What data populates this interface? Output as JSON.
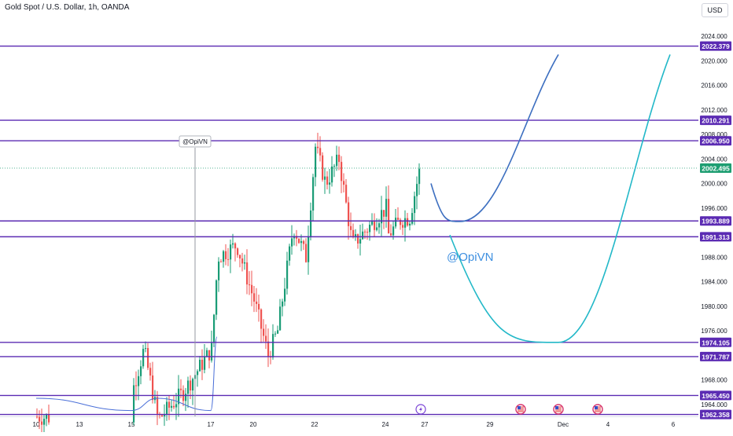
{
  "header": {
    "symbol_title": "Gold Spot / U.S. Dollar, 1h, OANDA",
    "currency": "USD"
  },
  "watermark": "@OpiVN",
  "marker_label": "@OpiVN",
  "colors": {
    "level_line": "#5b2bb3",
    "level_label_bg": "#5b2bb3",
    "up_candle": "#1a9c76",
    "down_candle": "#ef5350",
    "ma_line": "#4a6fd8",
    "projection_blue": "#3d6fc0",
    "projection_cyan": "#22b8c8",
    "last_price_bg": "#1e9e72",
    "watermark": "#3d8fe0"
  },
  "chart_data": {
    "type": "candlestick",
    "title": "Gold Spot / U.S. Dollar, 1h, OANDA",
    "currency": "USD",
    "x_tick_labels": [
      "10",
      "13",
      "15",
      "17",
      "20",
      "22",
      "24",
      "27",
      "29",
      "Dec",
      "4",
      "6"
    ],
    "y_ticks": [
      2024.0,
      2020.0,
      2016.0,
      2012.0,
      2008.0,
      2004.0,
      2000.0,
      1996.0,
      1988.0,
      1984.0,
      1980.0,
      1976.0,
      1968.0,
      1964.0
    ],
    "ylim": [
      1961.3,
      2024.8
    ],
    "last_price": 2002.495,
    "horizontal_levels": [
      2022.379,
      2010.291,
      2006.95,
      1993.889,
      1991.313,
      1974.105,
      1971.787,
      1965.45,
      1962.358
    ],
    "price_path_anchors": [
      [
        "10",
        1962.0
      ],
      [
        "13",
        1961.5
      ],
      [
        "15",
        1966.0
      ],
      [
        "15.5",
        1973.0
      ],
      [
        "16",
        1961.5
      ],
      [
        "16.5",
        1966.0
      ],
      [
        "17",
        1973.0
      ],
      [
        "17.5",
        1988.0
      ],
      [
        "19",
        1990.0
      ],
      [
        "20",
        1981.0
      ],
      [
        "20.8",
        1972.0
      ],
      [
        "21",
        1976.0
      ],
      [
        "21.5",
        1993.0
      ],
      [
        "21.8",
        1988.0
      ],
      [
        "22",
        2006.0
      ],
      [
        "22.5",
        2000.0
      ],
      [
        "23",
        2004.0
      ],
      [
        "23.5",
        1990.0
      ],
      [
        "24",
        1996.0
      ],
      [
        "24.5",
        1991.5
      ],
      [
        "25",
        1994.0
      ],
      [
        "25.5",
        1994.5
      ],
      [
        "26",
        2002.5
      ]
    ],
    "ma_path_anchors": [
      [
        "10",
        1965.0
      ],
      [
        "15",
        1963.0
      ],
      [
        "16",
        1965.0
      ],
      [
        "17",
        1963.0
      ],
      [
        "17.5",
        1975.0
      ],
      [
        "18",
        1985.0
      ],
      [
        "19",
        1987.0
      ],
      [
        "20",
        1984.0
      ],
      [
        "20.8",
        1979.0
      ],
      [
        "21",
        1980.0
      ],
      [
        "21.8",
        1991.0
      ],
      [
        "22",
        1996.0
      ],
      [
        "22.5",
        1998.0
      ],
      [
        "23",
        2001.0
      ],
      [
        "23.5",
        1998.0
      ],
      [
        "24",
        1994.0
      ],
      [
        "24.5",
        1993.5
      ],
      [
        "25",
        1994.5
      ],
      [
        "26",
        1997.0
      ]
    ],
    "projections": [
      {
        "color": "projection_blue",
        "from": [
          "26.3",
          2000.0
        ],
        "min": [
          "27.6",
          1993.8
        ],
        "to": [
          "Dec-",
          2021.0
        ]
      },
      {
        "color": "projection_cyan",
        "from": [
          "26.6",
          1991.6
        ],
        "min": [
          "Dec-",
          1974.1
        ],
        "to": [
          "6-",
          2021.0
        ]
      }
    ],
    "event_icons": [
      {
        "type": "lightning",
        "at": "26.9"
      },
      {
        "type": "us-flag",
        "at": "30"
      },
      {
        "type": "us-flag",
        "at": "Dec-"
      },
      {
        "type": "us-flag",
        "at": "4-"
      }
    ]
  }
}
